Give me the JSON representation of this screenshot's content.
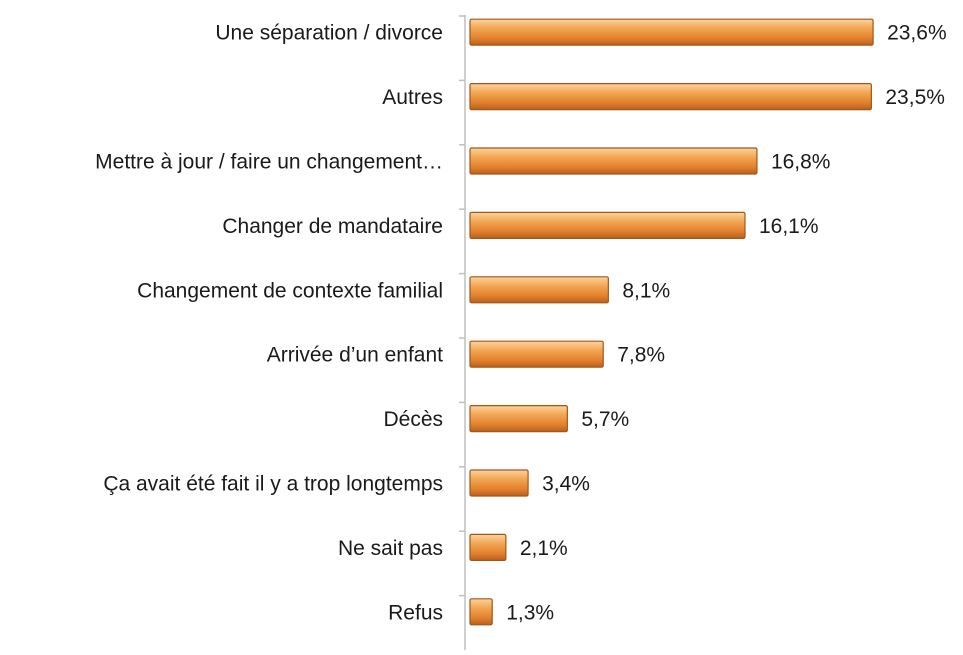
{
  "chart_data": {
    "type": "bar",
    "orientation": "horizontal",
    "categories": [
      "Une séparation / divorce",
      "Autres",
      "Mettre à jour / faire un changement…",
      "Changer de mandataire",
      "Changement de contexte familial",
      "Arrivée d’un enfant",
      "Décès",
      "Ça avait été fait il y a trop longtemps",
      "Ne sait pas",
      "Refus"
    ],
    "values": [
      23.6,
      23.5,
      16.8,
      16.1,
      8.1,
      7.8,
      5.7,
      3.4,
      2.1,
      1.3
    ],
    "value_labels": [
      "23,6%",
      "23,5%",
      "16,8%",
      "16,1%",
      "8,1%",
      "7,8%",
      "5,7%",
      "3,4%",
      "2,1%",
      "1,3%"
    ],
    "color": "#ef9a45"
  }
}
